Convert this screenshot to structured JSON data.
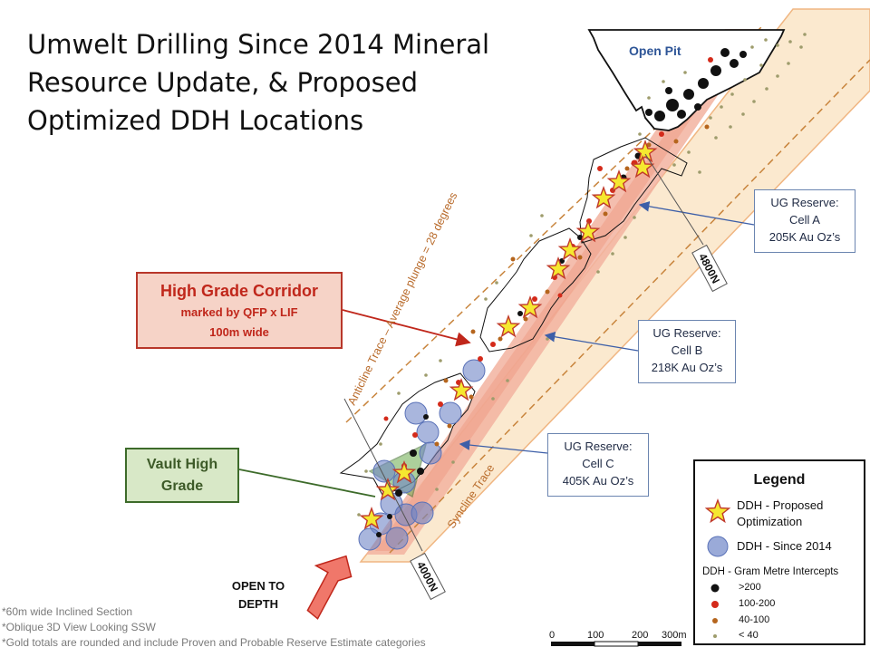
{
  "title": {
    "line1": "Umwelt Drilling Since 2014 Mineral",
    "line2": "Resource Update, & Proposed",
    "line3": "Optimized DDH Locations"
  },
  "callouts": {
    "high_grade_corridor": {
      "line1": "High Grade Corridor",
      "line2": "marked by QFP x LIF",
      "line3": "100m wide"
    },
    "vault": {
      "line1": "Vault High",
      "line2": "Grade"
    },
    "open_to_depth": {
      "line1": "OPEN TO",
      "line2": "DEPTH"
    },
    "open_pit": "Open Pit"
  },
  "reserves": [
    {
      "line1": "UG Reserve:",
      "line2": "Cell A",
      "line3": "205K Au Oz’s"
    },
    {
      "line1": "UG Reserve:",
      "line2": "Cell B",
      "line3": "218K Au Oz’s"
    },
    {
      "line1": "UG Reserve:",
      "line2": "Cell C",
      "line3": "405K Au Oz’s"
    }
  ],
  "traces": {
    "anticline": "Anticline Trace – Average plunge = 28 degrees",
    "syncline": "Syncline Trace"
  },
  "section_labels": {
    "north": "4800N",
    "south": "4000N"
  },
  "legend": {
    "title": "Legend",
    "proposed_line1": "DDH - Proposed",
    "proposed_line2": "Optimization",
    "since2014": "DDH - Since 2014",
    "intercepts_title": "DDH - Gram Metre Intercepts",
    "classes": [
      {
        "label": ">200",
        "color": "#111111"
      },
      {
        "label": "100-200",
        "color": "#d42a1a"
      },
      {
        "label": "40-100",
        "color": "#b5651d"
      },
      {
        "label": "< 40",
        "color": "#9e9c6c"
      }
    ]
  },
  "scale_bar": {
    "labels": [
      "0",
      "100",
      "200",
      "300m"
    ]
  },
  "notes": [
    "*60m wide Inclined Section",
    "*Oblique 3D View Looking SSW",
    "*Gold totals are rounded and include Proven and Probable Reserve Estimate categories"
  ],
  "colors": {
    "section_band": "#fbe9cf",
    "section_edge": "#f0b682",
    "corridor": "#f2b3a0",
    "arrow": "#f0776a",
    "star_fill": "#f5e830",
    "star_stroke": "#c0392b",
    "since2014_fill": "#6f86c7"
  }
}
